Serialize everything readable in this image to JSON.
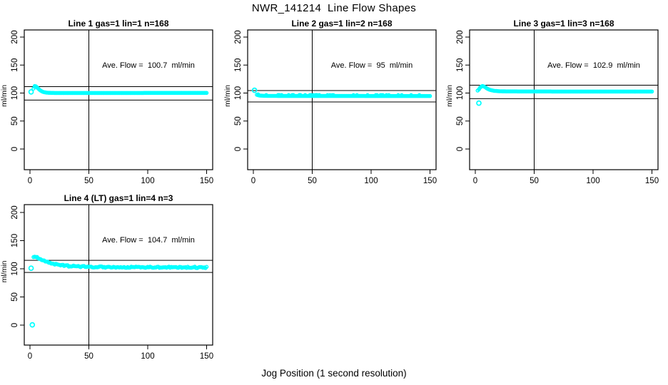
{
  "figure": {
    "title": "NWR_141214  Line Flow Shapes",
    "xlabel": "Jog Position (1 second resolution)"
  },
  "colors": {
    "data_points": "#00FFFF",
    "axis": "#000000",
    "background": "#FFFFFF"
  },
  "chart_data": [
    {
      "type": "scatter",
      "title": "Line 1 gas=1 lin=1 n=168",
      "annotation": "Ave. Flow =  100.7  ml/min",
      "ave_flow_ml_min": 100.7,
      "n": 168,
      "ylabel": "ml/min",
      "x_ticks": [
        0,
        50,
        100,
        150
      ],
      "y_ticks": [
        0,
        50,
        100,
        150,
        200
      ],
      "xlim": [
        -6,
        156
      ],
      "ylim": [
        -37,
        213
      ],
      "ref_lines": {
        "upper": 111.5,
        "lower": 87.5,
        "vertical_x": 50
      },
      "band": {
        "x_start": 3,
        "x_end": 150,
        "thickness": 4,
        "jitter": 0,
        "spikes": false,
        "anchors": [
          [
            3,
            108
          ],
          [
            4,
            112.5
          ],
          [
            5,
            112
          ],
          [
            6,
            110
          ],
          [
            7,
            108
          ],
          [
            8,
            106
          ],
          [
            9,
            104.5
          ],
          [
            10,
            103.2
          ],
          [
            11,
            102.2
          ],
          [
            12,
            101.5
          ],
          [
            14,
            100.8
          ],
          [
            16,
            100.4
          ],
          [
            20,
            100.2
          ],
          [
            30,
            100.1
          ],
          [
            60,
            100.1
          ],
          [
            100,
            100.2
          ],
          [
            150,
            100.2
          ]
        ]
      },
      "outliers": [
        [
          1,
          102
        ]
      ]
    },
    {
      "type": "scatter",
      "title": "Line 2 gas=1 lin=2 n=168",
      "annotation": "Ave. Flow =  95  ml/min",
      "ave_flow_ml_min": 95,
      "n": 168,
      "ylabel": "ml/min",
      "x_ticks": [
        0,
        50,
        100,
        150
      ],
      "y_ticks": [
        0,
        50,
        100,
        150,
        200
      ],
      "xlim": [
        -6,
        156
      ],
      "ylim": [
        -37,
        213
      ],
      "ref_lines": {
        "upper": 104.5,
        "lower": 84,
        "vertical_x": 50
      },
      "band": {
        "x_start": 3,
        "x_end": 150,
        "thickness": 4,
        "jitter": 0,
        "spikes": true,
        "anchors": [
          [
            3,
            97
          ],
          [
            4,
            96.2
          ],
          [
            5,
            95.7
          ],
          [
            6,
            95.4
          ],
          [
            8,
            95.1
          ],
          [
            10,
            95
          ],
          [
            15,
            94.9
          ],
          [
            25,
            94.8
          ],
          [
            60,
            94.8
          ],
          [
            100,
            94.7
          ],
          [
            150,
            94.7
          ]
        ]
      },
      "outliers": [
        [
          1,
          105
        ]
      ]
    },
    {
      "type": "scatter",
      "title": "Line 3 gas=1 lin=3 n=168",
      "annotation": "Ave. Flow =  102.9  ml/min",
      "ave_flow_ml_min": 102.9,
      "n": 168,
      "ylabel": "ml/min",
      "x_ticks": [
        0,
        50,
        100,
        150
      ],
      "y_ticks": [
        0,
        50,
        100,
        150,
        200
      ],
      "xlim": [
        -6,
        156
      ],
      "ylim": [
        -37,
        213
      ],
      "ref_lines": {
        "upper": 114,
        "lower": 90,
        "vertical_x": 50
      },
      "band": {
        "x_start": 2,
        "x_end": 150,
        "thickness": 4.5,
        "jitter": 0,
        "spikes": false,
        "anchors": [
          [
            2,
            104.5
          ],
          [
            3,
            106.5
          ],
          [
            4,
            109.5
          ],
          [
            5,
            111.5
          ],
          [
            6,
            112.5
          ],
          [
            7,
            112
          ],
          [
            8,
            111
          ],
          [
            9,
            109.5
          ],
          [
            10,
            108
          ],
          [
            12,
            106
          ],
          [
            14,
            104.8
          ],
          [
            16,
            104
          ],
          [
            20,
            103.3
          ],
          [
            25,
            103
          ],
          [
            40,
            102.8
          ],
          [
            80,
            102.7
          ],
          [
            150,
            102.7
          ]
        ]
      },
      "outliers": [
        [
          3,
          82
        ]
      ]
    },
    {
      "type": "scatter",
      "title": "Line 4 (LT) gas=1 lin=4 n=3",
      "annotation": "Ave. Flow =  104.7  ml/min",
      "ave_flow_ml_min": 104.7,
      "n": 3,
      "ylabel": "ml/min",
      "x_ticks": [
        0,
        50,
        100,
        150
      ],
      "y_ticks": [
        0,
        50,
        100,
        150,
        200
      ],
      "xlim": [
        -6,
        156
      ],
      "ylim": [
        -37,
        213
      ],
      "ref_lines": {
        "upper": 115,
        "lower": 93.5,
        "vertical_x": 50
      },
      "band": {
        "x_start": 3,
        "x_end": 150,
        "thickness": 2.6,
        "jitter": 1.2,
        "spikes": false,
        "anchors": [
          [
            3,
            122
          ],
          [
            5,
            121
          ],
          [
            7,
            119.5
          ],
          [
            9,
            117.5
          ],
          [
            11,
            115.5
          ],
          [
            13,
            113.5
          ],
          [
            15,
            112
          ],
          [
            18,
            110
          ],
          [
            21,
            108.5
          ],
          [
            25,
            107
          ],
          [
            30,
            105.5
          ],
          [
            35,
            104.7
          ],
          [
            40,
            104.2
          ],
          [
            45,
            103.8
          ],
          [
            50,
            103.6
          ],
          [
            60,
            103.2
          ],
          [
            70,
            103
          ],
          [
            85,
            102.8
          ],
          [
            100,
            102.8
          ],
          [
            120,
            102.6
          ],
          [
            150,
            102.4
          ]
        ]
      },
      "outliers": [
        [
          1,
          101
        ],
        [
          2,
          0.5
        ]
      ]
    }
  ]
}
